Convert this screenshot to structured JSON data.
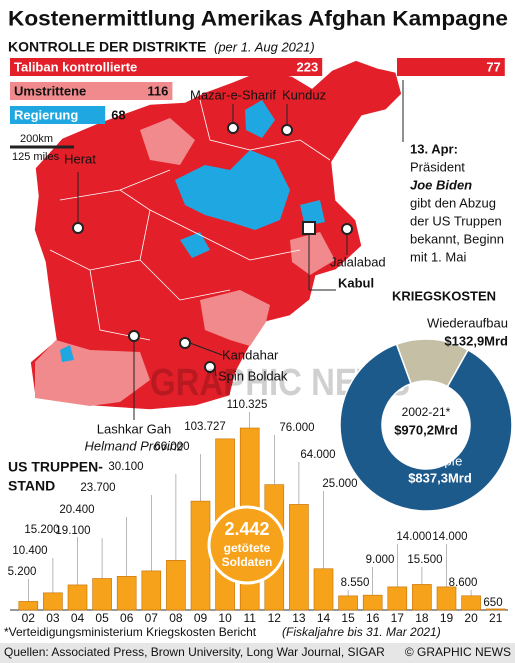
{
  "title": "Kostenermittlung Amerikas Afghan Kampagne",
  "map_labels": [
    "Herat",
    "Mazar-e-Sharif",
    "Kunduz",
    "Jalalabad",
    "Kabul",
    "Kandahar",
    "Spin Boldak",
    "Lashkar Gah",
    "Helmand Provinz"
  ],
  "scale": [
    "200km",
    "125 miles"
  ],
  "annotation": {
    "date": "13. Apr:",
    "lines": [
      "Präsident",
      "Joe Biden",
      "gibt den Abzug",
      "der US Truppen",
      "bekannt, Beginn",
      "mit 1. Mai"
    ]
  },
  "watermark": "GRAPHIC NEWS",
  "footnote": [
    "*Verteidigungsministerium Kriegskosten Bericht",
    "(Fiskaljahre bis 31. Mar 2021)"
  ],
  "source": "Quellen: Associated Press, Brown University, Long War Journal, SIGAR",
  "credit": "© GRAPHIC NEWS",
  "chart_data": [
    {
      "type": "hbar",
      "title": "KONTROLLE DER DISTRIKTE",
      "subtitle": "(per 1. Aug 2021)",
      "categories": [
        "Taliban kontrollierte",
        "Umstrittene",
        "Regierung"
      ],
      "values": [
        223,
        116,
        68
      ],
      "colors": [
        "#e3202a",
        "#f08a8c",
        "#1fa7e1"
      ],
      "april_value": 77,
      "april_color": "#e3202a"
    },
    {
      "type": "pie",
      "title": "KRIEGSKOSTEN",
      "categories": [
        "Wiederaufbau",
        "Kämpfe"
      ],
      "values": [
        132.9,
        837.3
      ],
      "value_labels": [
        "$132,9Mrd",
        "$837,3Mrd"
      ],
      "colors": [
        "#c4bfa5",
        "#1d5a8c"
      ],
      "center_label": [
        "2002-21*",
        "$970,2Mrd"
      ]
    },
    {
      "type": "bar",
      "title": [
        "US TRUPPEN-",
        "STAND"
      ],
      "categories": [
        "02",
        "03",
        "04",
        "05",
        "06",
        "07",
        "08",
        "09",
        "10",
        "11",
        "12",
        "13",
        "14",
        "15",
        "16",
        "17",
        "18",
        "19",
        "20",
        "21"
      ],
      "values": [
        5200,
        10400,
        15200,
        19100,
        20400,
        23700,
        30100,
        66000,
        103727,
        110325,
        76000,
        64000,
        25000,
        8550,
        9000,
        14000,
        15500,
        14000,
        8600,
        650
      ],
      "value_labels": [
        "5.200",
        "10.400",
        "15.200",
        "19.100",
        "20.400",
        "23.700",
        "30.100",
        "66.000",
        "103.727",
        "110.325",
        "76.000",
        "64.000",
        "25.000",
        "8.550",
        "9.000",
        "14.000",
        "15.500",
        "14.000",
        "8.600",
        "650"
      ],
      "color": "#f7a21b",
      "annotation": [
        "2.442",
        "getötete",
        "Soldaten"
      ]
    }
  ]
}
